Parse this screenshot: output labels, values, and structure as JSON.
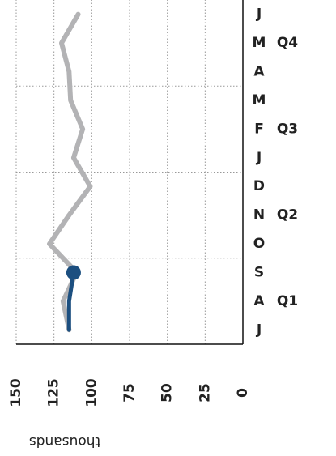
{
  "chart_data": {
    "type": "line",
    "y_label": "thousands",
    "categories": [
      "J",
      "A",
      "S",
      "O",
      "N",
      "D",
      "J",
      "F",
      "M",
      "A",
      "M",
      "J"
    ],
    "groups": [
      "Q1",
      "Q2",
      "Q3",
      "Q4"
    ],
    "series": [
      {
        "color": "#b3b3b5",
        "values": [
          115,
          119,
          110,
          128,
          115,
          101,
          112,
          106,
          114,
          115,
          120,
          109
        ]
      },
      {
        "color": "#1c4f80",
        "values": [
          115,
          115,
          112,
          null,
          null,
          null,
          null,
          null,
          null,
          null,
          null,
          null
        ]
      }
    ],
    "ylim": [
      0,
      150
    ],
    "yticks": [
      0,
      25,
      50,
      75,
      100,
      125,
      150
    ],
    "grid": true
  }
}
